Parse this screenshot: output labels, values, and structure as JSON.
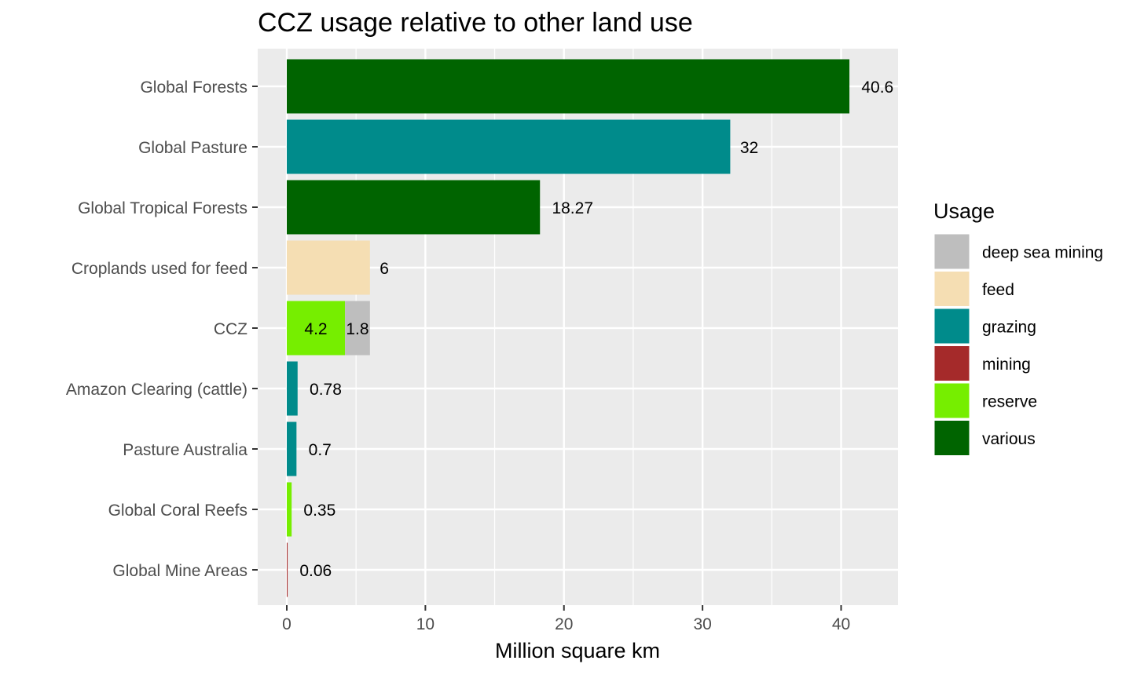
{
  "chart_data": {
    "type": "bar",
    "orientation": "horizontal",
    "stacked": true,
    "title": "CCZ usage relative to other land use",
    "xlabel": "Million square km",
    "ylabel": "",
    "xlim": [
      0,
      44
    ],
    "xticks": [
      0,
      10,
      20,
      30,
      40
    ],
    "grid": true,
    "legend": {
      "title": "Usage",
      "position": "right"
    },
    "categories": [
      "Global Forests",
      "Global Pasture",
      "Global Tropical Forests",
      "Croplands used for feed",
      "CCZ",
      "Amazon Clearing (cattle)",
      "Pasture Australia",
      "Global Coral Reefs",
      "Global Mine Areas"
    ],
    "usage_types": [
      {
        "name": "deep sea mining",
        "color": "#bebebe"
      },
      {
        "name": "feed",
        "color": "#f5deb3"
      },
      {
        "name": "grazing",
        "color": "#008b8b"
      },
      {
        "name": "mining",
        "color": "#a52a2a"
      },
      {
        "name": "reserve",
        "color": "#76ee00"
      },
      {
        "name": "various",
        "color": "#006400"
      }
    ],
    "bars": [
      {
        "category": "Global Forests",
        "segments": [
          {
            "usage": "various",
            "value": 40.6,
            "label": "40.6"
          }
        ]
      },
      {
        "category": "Global Pasture",
        "segments": [
          {
            "usage": "grazing",
            "value": 32,
            "label": "32"
          }
        ]
      },
      {
        "category": "Global Tropical Forests",
        "segments": [
          {
            "usage": "various",
            "value": 18.27,
            "label": "18.27"
          }
        ]
      },
      {
        "category": "Croplands used for feed",
        "segments": [
          {
            "usage": "feed",
            "value": 6,
            "label": "6"
          }
        ]
      },
      {
        "category": "CCZ",
        "segments": [
          {
            "usage": "reserve",
            "value": 4.2,
            "label": "4.2"
          },
          {
            "usage": "deep sea mining",
            "value": 1.8,
            "label": "1.8"
          }
        ]
      },
      {
        "category": "Amazon Clearing (cattle)",
        "segments": [
          {
            "usage": "grazing",
            "value": 0.78,
            "label": "0.78"
          }
        ]
      },
      {
        "category": "Pasture Australia",
        "segments": [
          {
            "usage": "grazing",
            "value": 0.7,
            "label": "0.7"
          }
        ]
      },
      {
        "category": "Global Coral Reefs",
        "segments": [
          {
            "usage": "reserve",
            "value": 0.35,
            "label": "0.35"
          }
        ]
      },
      {
        "category": "Global Mine Areas",
        "segments": [
          {
            "usage": "mining",
            "value": 0.06,
            "label": "0.06"
          }
        ]
      }
    ]
  }
}
